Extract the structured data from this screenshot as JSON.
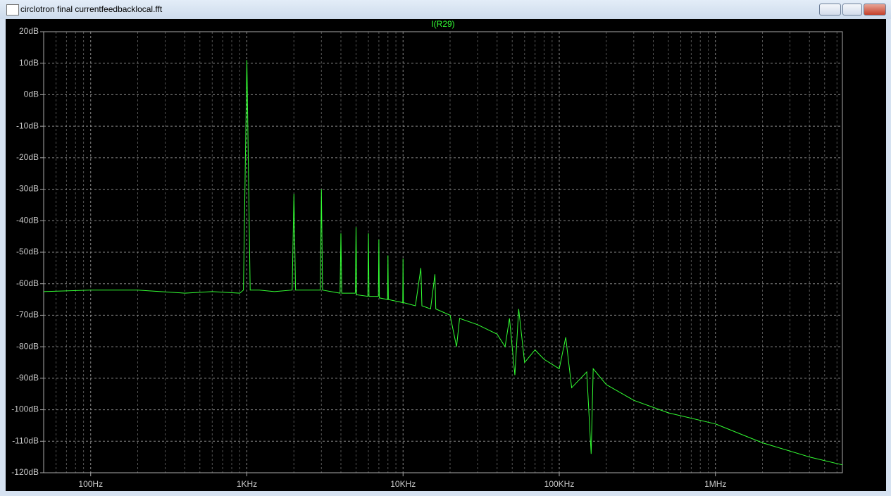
{
  "window": {
    "title": "circlotron final currentfeedbacklocal.fft"
  },
  "chart_data": {
    "type": "line",
    "title": "I(R29)",
    "x_scale": "log",
    "grid": true,
    "xlim": [
      50,
      6500000
    ],
    "ylim": [
      -120,
      20
    ],
    "xticks": [
      {
        "value": 100,
        "label": "100Hz"
      },
      {
        "value": 1000,
        "label": "1KHz"
      },
      {
        "value": 10000,
        "label": "10KHz"
      },
      {
        "value": 100000,
        "label": "100KHz"
      },
      {
        "value": 1000000,
        "label": "1MHz"
      }
    ],
    "yticks": [
      {
        "value": -120,
        "label": "-120dB"
      },
      {
        "value": -110,
        "label": "-110dB"
      },
      {
        "value": -100,
        "label": "-100dB"
      },
      {
        "value": -90,
        "label": "-90dB"
      },
      {
        "value": -80,
        "label": "-80dB"
      },
      {
        "value": -70,
        "label": "-70dB"
      },
      {
        "value": -60,
        "label": "-60dB"
      },
      {
        "value": -50,
        "label": "-50dB"
      },
      {
        "value": -40,
        "label": "-40dB"
      },
      {
        "value": -30,
        "label": "-30dB"
      },
      {
        "value": -20,
        "label": "-20dB"
      },
      {
        "value": -10,
        "label": "-10dB"
      },
      {
        "value": 0,
        "label": "0dB"
      },
      {
        "value": 10,
        "label": "10dB"
      },
      {
        "value": 20,
        "label": "20dB"
      }
    ],
    "x": [
      50,
      100,
      200,
      400,
      600,
      900,
      950,
      1000,
      1050,
      1200,
      1500,
      1950,
      2000,
      2050,
      2500,
      2950,
      3000,
      3050,
      3950,
      4000,
      4050,
      4950,
      5000,
      5050,
      5950,
      6000,
      6050,
      6950,
      7000,
      7050,
      7950,
      8000,
      8050,
      9950,
      10000,
      10050,
      12000,
      13000,
      13200,
      15000,
      16000,
      16200,
      20000,
      22000,
      23000,
      30000,
      40000,
      45000,
      48000,
      52000,
      55000,
      60000,
      70000,
      80000,
      100000,
      110000,
      120000,
      150000,
      160000,
      165000,
      200000,
      300000,
      500000,
      1000000,
      2000000,
      4000000,
      6500000
    ],
    "series": [
      {
        "name": "I(R29)",
        "color": "#33ff33",
        "values": [
          -62.5,
          -62,
          -62,
          -63,
          -62.5,
          -63,
          -62,
          11,
          -62,
          -62,
          -62.5,
          -62,
          -31.5,
          -62,
          -62,
          -62,
          -30,
          -62,
          -63,
          -44,
          -63,
          -63,
          -42,
          -63.5,
          -64,
          -44,
          -64,
          -64,
          -46,
          -64.5,
          -65,
          -51,
          -65,
          -66,
          -52,
          -66,
          -67,
          -55,
          -67,
          -68,
          -57,
          -68,
          -70,
          -80,
          -71,
          -73,
          -76,
          -80,
          -71,
          -89,
          -68,
          -85,
          -81,
          -84,
          -87,
          -77,
          -93,
          -88,
          -114,
          -87,
          -92,
          -97,
          -101,
          -104.5,
          -110.5,
          -115,
          -117.5
        ]
      }
    ]
  }
}
